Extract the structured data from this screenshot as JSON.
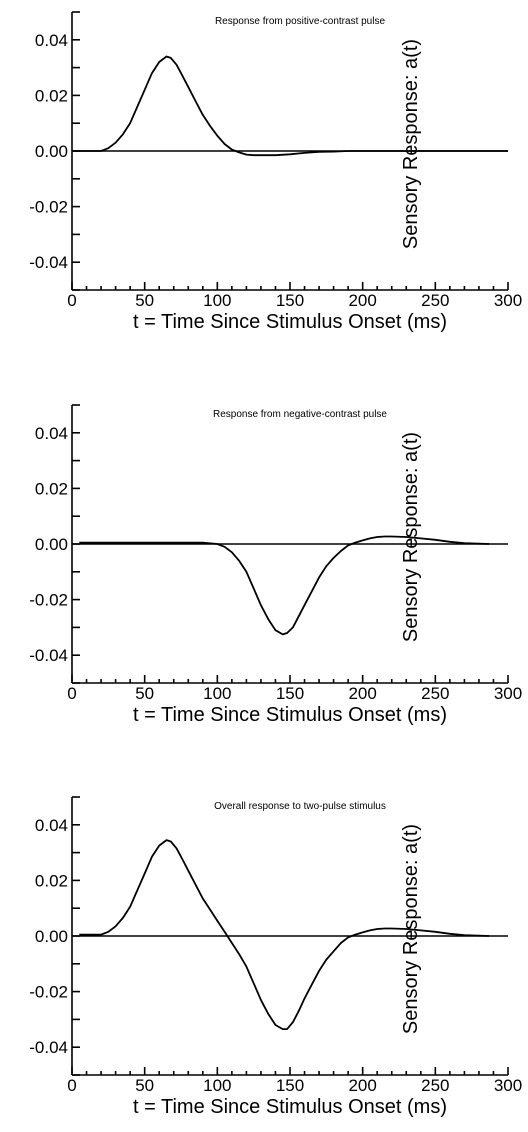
{
  "chart_data": [
    {
      "type": "line",
      "title": "Response from positive-contrast pulse",
      "xlabel": "t = Time Since Stimulus Onset (ms)",
      "ylabel": "Sensory Response: a(t)",
      "xlim": [
        0,
        300
      ],
      "ylim": [
        -0.05,
        0.05
      ],
      "x_ticks": [
        "0",
        "50",
        "100",
        "150",
        "200",
        "250",
        "300"
      ],
      "y_ticks": [
        "0.04",
        "0.02",
        "0.00",
        "-0.02",
        "-0.04"
      ],
      "series": [
        {
          "x": [
            0,
            10,
            20,
            25,
            30,
            35,
            40,
            45,
            50,
            55,
            60,
            65,
            68,
            72,
            76,
            80,
            85,
            90,
            95,
            100,
            105,
            110,
            115,
            120,
            125,
            130,
            140,
            150,
            160,
            170,
            180,
            190,
            200,
            250,
            300
          ],
          "y": [
            0,
            0,
            0,
            0.001,
            0.003,
            0.006,
            0.01,
            0.016,
            0.022,
            0.028,
            0.032,
            0.034,
            0.0335,
            0.031,
            0.027,
            0.023,
            0.018,
            0.013,
            0.009,
            0.0055,
            0.0025,
            0.0005,
            -0.0005,
            -0.0013,
            -0.0015,
            -0.0015,
            -0.0015,
            -0.0012,
            -0.0007,
            -0.0003,
            -0.0002,
            0,
            0,
            0,
            0
          ]
        }
      ]
    },
    {
      "type": "line",
      "title": "Response from negative-contrast pulse",
      "xlabel": "t = Time Since Stimulus Onset (ms)",
      "ylabel": "Sensory Response: a(t)",
      "xlim": [
        0,
        300
      ],
      "ylim": [
        -0.05,
        0.05
      ],
      "x_ticks": [
        "0",
        "50",
        "100",
        "150",
        "200",
        "250",
        "300"
      ],
      "y_ticks": [
        "0.04",
        "0.02",
        "0.00",
        "-0.02",
        "-0.04"
      ],
      "series": [
        {
          "x": [
            5,
            50,
            90,
            100,
            105,
            110,
            115,
            120,
            125,
            130,
            135,
            140,
            145,
            148,
            152,
            156,
            160,
            165,
            170,
            175,
            180,
            185,
            190,
            195,
            200,
            205,
            210,
            215,
            220,
            230,
            240,
            250,
            260,
            270,
            287
          ],
          "y": [
            0.0005,
            0.0005,
            0.0005,
            0,
            -0.001,
            -0.003,
            -0.006,
            -0.01,
            -0.016,
            -0.022,
            -0.027,
            -0.031,
            -0.0325,
            -0.032,
            -0.03,
            -0.026,
            -0.022,
            -0.017,
            -0.012,
            -0.008,
            -0.005,
            -0.0025,
            -0.0005,
            0.0005,
            0.0013,
            0.002,
            0.0025,
            0.0027,
            0.0027,
            0.0025,
            0.002,
            0.0015,
            0.0008,
            0.0003,
            0
          ]
        }
      ]
    },
    {
      "type": "line",
      "title": "Overall response to two-pulse stimulus",
      "xlabel": "t = Time Since Stimulus Onset (ms)",
      "ylabel": "Sensory Response: a(t)",
      "xlim": [
        0,
        300
      ],
      "ylim": [
        -0.05,
        0.05
      ],
      "x_ticks": [
        "0",
        "50",
        "100",
        "150",
        "200",
        "250",
        "300"
      ],
      "y_ticks": [
        "0.04",
        "0.02",
        "0.00",
        "-0.02",
        "-0.04"
      ],
      "series": [
        {
          "x": [
            5,
            20,
            25,
            30,
            35,
            40,
            45,
            50,
            55,
            60,
            65,
            68,
            72,
            76,
            80,
            85,
            90,
            95,
            100,
            105,
            110,
            115,
            120,
            125,
            130,
            135,
            140,
            145,
            148,
            152,
            156,
            160,
            165,
            170,
            175,
            180,
            185,
            190,
            195,
            200,
            205,
            210,
            215,
            220,
            230,
            240,
            250,
            260,
            270,
            287
          ],
          "y": [
            0.0005,
            0.0005,
            0.0015,
            0.0035,
            0.0065,
            0.0105,
            0.0165,
            0.0225,
            0.0285,
            0.0325,
            0.0345,
            0.034,
            0.0315,
            0.0275,
            0.0235,
            0.0185,
            0.0135,
            0.0095,
            0.0055,
            0.0015,
            -0.0025,
            -0.0065,
            -0.011,
            -0.017,
            -0.023,
            -0.028,
            -0.032,
            -0.0335,
            -0.0335,
            -0.031,
            -0.027,
            -0.0225,
            -0.0175,
            -0.0125,
            -0.0085,
            -0.0055,
            -0.0025,
            -0.0005,
            0.0005,
            0.0013,
            0.002,
            0.0025,
            0.0027,
            0.0027,
            0.0025,
            0.002,
            0.0015,
            0.0008,
            0.0003,
            0
          ]
        }
      ]
    }
  ]
}
